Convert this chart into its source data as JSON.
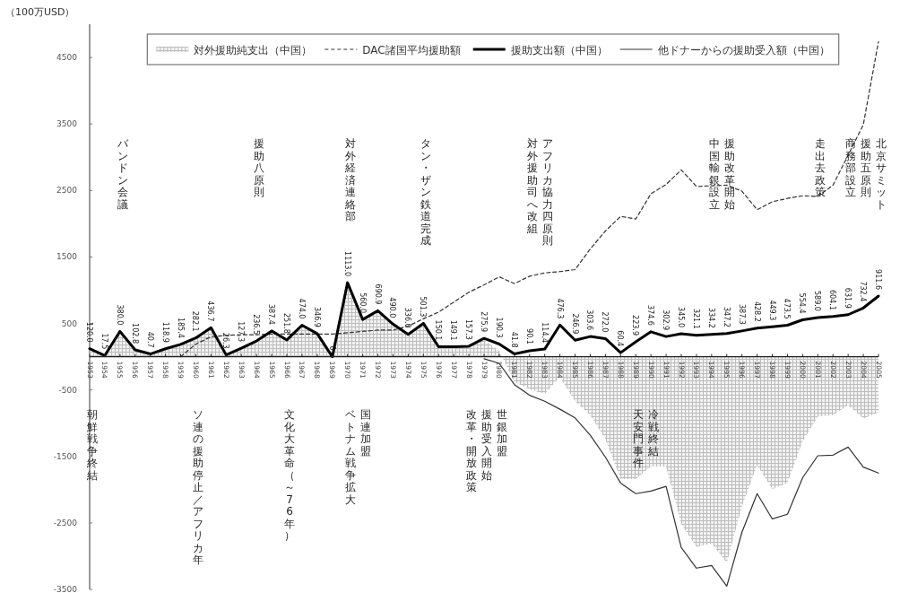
{
  "chart_data": {
    "type": "line",
    "ylabel": "（100万USD）",
    "legend": "top",
    "categories": [
      "1953",
      "1954",
      "1955",
      "1956",
      "1957",
      "1958",
      "1959",
      "1960",
      "1961",
      "1962",
      "1963",
      "1964",
      "1965",
      "1966",
      "1967",
      "1968",
      "1969",
      "1970",
      "1971",
      "1972",
      "1973",
      "1974",
      "1975",
      "1976",
      "1977",
      "1978",
      "1979",
      "1980",
      "1981",
      "1982",
      "1983",
      "1984",
      "1985",
      "1986",
      "1987",
      "1988",
      "1989",
      "1990",
      "1991",
      "1992",
      "1993",
      "1994",
      "1995",
      "1996",
      "1997",
      "1998",
      "1999",
      "2000",
      "2001",
      "2002",
      "2003",
      "2004",
      "2005"
    ],
    "ylim": [
      -3500,
      5000
    ],
    "yticks": [
      -3500,
      -2500,
      -1500,
      -500,
      500,
      1500,
      2500,
      3500,
      4500
    ],
    "series": [
      {
        "name": "対外援助純支出（中国）",
        "type": "area",
        "color": "#bdbdbd",
        "values": [
          120,
          18,
          380,
          103,
          41,
          119,
          185,
          282,
          437,
          26,
          127,
          237,
          387,
          252,
          474,
          347,
          0,
          1113,
          560,
          691,
          490,
          336,
          501,
          150,
          149,
          157,
          250,
          90,
          -380,
          -490,
          -560,
          -310,
          -670,
          -880,
          -1240,
          -1840,
          -1840,
          -1650,
          -1650,
          -2520,
          -2860,
          -2810,
          -3100,
          -2250,
          -1630,
          -1990,
          -1900,
          -1270,
          -900,
          -880,
          -730,
          -930,
          -840
        ]
      },
      {
        "name": "DAC諸国平均援助額",
        "line_style": "dashed",
        "color": "#333333",
        "values": [
          null,
          null,
          null,
          null,
          null,
          null,
          0,
          190,
          300,
          320,
          330,
          330,
          340,
          340,
          340,
          340,
          340,
          360,
          380,
          400,
          400,
          460,
          570,
          670,
          820,
          970,
          1080,
          1200,
          1100,
          1210,
          1260,
          1280,
          1310,
          1620,
          1890,
          2110,
          2070,
          2450,
          2590,
          2810,
          2560,
          2570,
          2580,
          2490,
          2210,
          2330,
          2380,
          2420,
          2410,
          2580,
          3030,
          3490,
          4740
        ]
      },
      {
        "name": "援助支出額（中国）",
        "line_style": "solid",
        "color": "#000000",
        "values": [
          120,
          17.5,
          380,
          102.8,
          40.7,
          118.9,
          185.4,
          282.1,
          436.7,
          26.3,
          127.3,
          236.5,
          387.4,
          251.8,
          474,
          346.9,
          0,
          1113,
          560,
          690.9,
          490,
          336,
          501.3,
          150.1,
          149.1,
          157.3,
          275.9,
          190.3,
          41.8,
          90.1,
          114.4,
          476.3,
          246.9,
          303.6,
          272,
          60.4,
          223.9,
          374.6,
          302.9,
          345,
          321.1,
          334.2,
          347.2,
          387.3,
          428.2,
          449.3,
          473.5,
          554.4,
          589,
          604.1,
          631.9,
          732.4,
          911.6
        ],
        "value_labels": [
          "120.0",
          "17.5",
          "380.0",
          "102.8",
          "40.7",
          "118.9",
          "185.4",
          "282.1",
          "436.7",
          "26.3",
          "127.3",
          "236.5",
          "387.4",
          "251.8",
          "474.0",
          "346.9",
          "0",
          "1113.0",
          "560.0",
          "690.9",
          "490.0",
          "336.0",
          "501.3",
          "150.1",
          "149.1",
          "157.3",
          "275.9",
          "190.3",
          "41.8",
          "90.1",
          "114.4",
          "476.3",
          "246.9",
          "303.6",
          "272.0",
          "60.4",
          "223.9",
          "374.6",
          "302.9",
          "345.0",
          "321.1",
          "334.2",
          "347.2",
          "387.3",
          "428.2",
          "449.3",
          "473.5",
          "554.4",
          "589.0",
          "604.1",
          "631.9",
          "732.4",
          "911.6"
        ]
      },
      {
        "name": "他ドナーからの援助受入額（中国）",
        "line_style": "solid",
        "color": "#333333",
        "values": [
          null,
          null,
          null,
          null,
          null,
          null,
          null,
          null,
          null,
          null,
          null,
          null,
          null,
          null,
          null,
          null,
          null,
          null,
          null,
          null,
          null,
          null,
          null,
          null,
          null,
          null,
          -30,
          -100,
          -420,
          -580,
          -670,
          -790,
          -920,
          -1180,
          -1510,
          -1900,
          -2060,
          -2020,
          -1950,
          -2870,
          -3180,
          -3140,
          -3450,
          -2640,
          -2060,
          -2440,
          -2370,
          -1820,
          -1490,
          -1480,
          -1360,
          -1660,
          -1750
        ]
      }
    ],
    "annotations": [
      "バンドン会議",
      "援助八原則",
      "対外経済連絡部",
      "タン・ザン鉄道完成",
      "対外援助司へ改組",
      "アフリカ協力四原則",
      "中国輸銀設立",
      "援助改革開始",
      "走出去政策",
      "商務部設立",
      "援助五原則",
      "北京サミット",
      "朝鮮戦争終結",
      "ソ連の援助停止／アフリカ年",
      "文化大革命（～76年）",
      "ベトナム戦争拡大",
      "国連加盟",
      "改革・開放政策",
      "援助受入開始",
      "世銀加盟",
      "天安門事件",
      "冷戦終結"
    ]
  }
}
